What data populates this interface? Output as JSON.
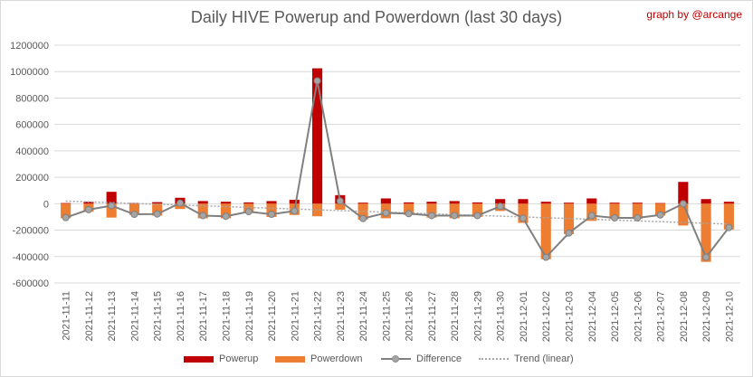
{
  "title": "Daily HIVE Powerup and Powerdown (last 30 days)",
  "credit": "graph by @arcange",
  "legend": {
    "powerup": "Powerup",
    "powerdown": "Powerdown",
    "difference": "Difference",
    "trend": "Trend (linear)"
  },
  "colors": {
    "powerup": "#c00000",
    "powerdown": "#ed7d31",
    "difference": "#808080",
    "difference_marker": "#a5a5a5",
    "trend": "#a6a6a6",
    "gridline": "#d9d9d9",
    "text": "#595959"
  },
  "chart_data": {
    "type": "bar",
    "title": "Daily HIVE Powerup and Powerdown (last 30 days)",
    "ylim": [
      -600000,
      1200000
    ],
    "yticks": [
      1200000,
      1000000,
      800000,
      600000,
      400000,
      200000,
      0,
      -200000,
      -400000,
      -600000
    ],
    "ytick_labels": [
      "1200000",
      "1000000",
      "800000",
      "600000",
      "400000",
      "200000",
      "0",
      "-200000",
      "-400000",
      "-600000"
    ],
    "grid": true,
    "legend_position": "bottom",
    "categories": [
      "2021-11-11",
      "2021-11-12",
      "2021-11-13",
      "2021-11-14",
      "2021-11-15",
      "2021-11-16",
      "2021-11-17",
      "2021-11-18",
      "2021-11-19",
      "2021-11-20",
      "2021-11-21",
      "2021-11-22",
      "2021-11-23",
      "2021-11-24",
      "2021-11-25",
      "2021-11-26",
      "2021-11-27",
      "2021-11-28",
      "2021-11-29",
      "2021-11-30",
      "2021-12-01",
      "2021-12-02",
      "2021-12-03",
      "2021-12-04",
      "2021-12-05",
      "2021-12-06",
      "2021-12-07",
      "2021-12-08",
      "2021-12-09",
      "2021-12-10"
    ],
    "series": [
      {
        "name": "Powerup",
        "type": "bar",
        "values": [
          5000,
          15000,
          90000,
          5000,
          12000,
          45000,
          20000,
          15000,
          10000,
          20000,
          30000,
          1025000,
          65000,
          8000,
          40000,
          10000,
          15000,
          20000,
          10000,
          35000,
          35000,
          15000,
          8000,
          40000,
          8000,
          8000,
          5000,
          165000,
          35000,
          15000
        ]
      },
      {
        "name": "Powerdown",
        "type": "bar",
        "values": [
          -110000,
          -60000,
          -105000,
          -85000,
          -90000,
          -40000,
          -110000,
          -110000,
          -70000,
          -100000,
          -85000,
          -95000,
          -45000,
          -120000,
          -110000,
          -85000,
          -105000,
          -110000,
          -100000,
          -55000,
          -145000,
          -420000,
          -230000,
          -130000,
          -115000,
          -115000,
          -90000,
          -165000,
          -440000,
          -195000
        ]
      },
      {
        "name": "Difference",
        "type": "line",
        "values": [
          -105000,
          -45000,
          -15000,
          -80000,
          -78000,
          5000,
          -90000,
          -95000,
          -60000,
          -80000,
          -55000,
          930000,
          20000,
          -112000,
          -70000,
          -75000,
          -90000,
          -90000,
          -90000,
          -20000,
          -110000,
          -405000,
          -222000,
          -90000,
          -107000,
          -107000,
          -85000,
          0,
          -405000,
          -180000
        ]
      },
      {
        "name": "Trend (linear)",
        "type": "line",
        "values": [
          20000,
          14000,
          8000,
          2000,
          -4000,
          -10000,
          -16000,
          -22000,
          -28000,
          -34000,
          -40000,
          -46000,
          -52000,
          -58000,
          -64000,
          -70000,
          -76000,
          -82000,
          -88000,
          -94000,
          -100000,
          -106000,
          -112000,
          -118000,
          -124000,
          -130000,
          -136000,
          -142000,
          -148000,
          -154000
        ]
      }
    ]
  }
}
